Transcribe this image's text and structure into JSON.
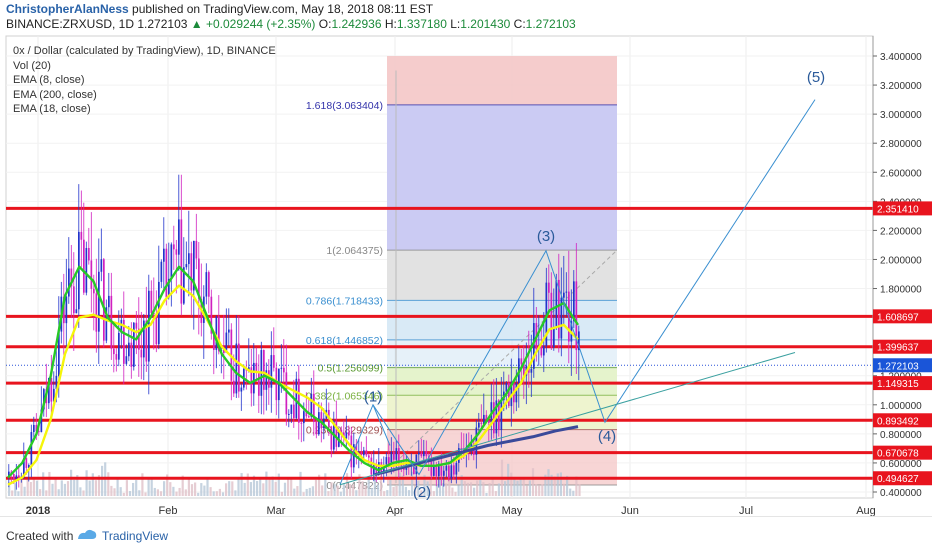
{
  "header": {
    "user": "ChristopherAlanNess",
    "published": "published on TradingView.com, May 18, 2018 08:11 EST",
    "symbol_line": "BINANCE:ZRXUSD, 1D",
    "last": "1.272103",
    "change": "▲ +0.029244 (+2.35%)",
    "o_label": "O:",
    "o": "1.242936",
    "h_label": "H:",
    "h": "1.337180",
    "l_label": "L:",
    "l": "1.201430",
    "c_label": "C:",
    "c": "1.272103"
  },
  "legend": {
    "title": "0x / Dollar (calculated by TradingView), 1D, BINANCE",
    "items": [
      "Vol (20)",
      "EMA (8, close)",
      "EMA (200, close)",
      "EMA (18, close)"
    ]
  },
  "footer": {
    "created": "Created with",
    "brand": "TradingView"
  },
  "colors": {
    "support_line": "#e8141e",
    "ema8": "#27c827",
    "ema18": "#f5f50a",
    "ema200": "#3a4a9a",
    "wave": "#3a8fd0",
    "candle_up": "#2233cc",
    "candle_down": "#d020c0",
    "fib_red": "#f4c7c7",
    "fib_blue": "#c8c8f2",
    "fib_grey": "#e2e2e2",
    "fib_lightblue": "#d5e8f5",
    "fib_green": "#e5f3cc",
    "fib_yellowgreen": "#eef4cf",
    "price_label": "#1a55d8"
  },
  "chart_data": {
    "type": "candlestick",
    "title": "0x / Dollar (calculated by TradingView), 1D, BINANCE",
    "x_ticks": [
      "2018",
      "Feb",
      "Mar",
      "Apr",
      "May",
      "Jun",
      "Jul",
      "Aug"
    ],
    "y_ticks": [
      "3.400000",
      "3.200000",
      "3.000000",
      "2.800000",
      "2.600000",
      "2.400000",
      "2.200000",
      "2.000000",
      "1.800000",
      "1.600000",
      "1.400000",
      "1.200000",
      "1.000000",
      "0.800000",
      "0.600000",
      "0.400000"
    ],
    "ylim": [
      0.4,
      3.4
    ],
    "y_tick_values": [
      3.4,
      3.2,
      3.0,
      2.8,
      2.6,
      2.4,
      2.2,
      2.0,
      1.8,
      1.6,
      1.4,
      1.2,
      1.0,
      0.8,
      0.6,
      0.4
    ],
    "price_levels": [
      {
        "label": "2.351410",
        "value": 2.35141
      },
      {
        "label": "1.608697",
        "value": 1.608697
      },
      {
        "label": "1.399637",
        "value": 1.399637
      },
      {
        "label": "1.272103",
        "value": 1.272103,
        "current": true
      },
      {
        "label": "1.149315",
        "value": 1.149315
      },
      {
        "label": "0.893492",
        "value": 0.893492
      },
      {
        "label": "0.670678",
        "value": 0.670678
      },
      {
        "label": "0.494627",
        "value": 0.494627
      }
    ],
    "fib_levels": [
      {
        "label": "1.618(3.063404)",
        "value": 3.063404
      },
      {
        "label": "1(2.064375)",
        "value": 2.064375
      },
      {
        "label": "0.786(1.718433)",
        "value": 1.718433
      },
      {
        "label": "0.618(1.446852)",
        "value": 1.446852
      },
      {
        "label": "0.5(1.256099)",
        "value": 1.256099
      },
      {
        "label": "0.382(1.065346)",
        "value": 1.065346
      },
      {
        "label": "0.236(0.829329)",
        "value": 0.829329
      },
      {
        "label": "0(0.447822)",
        "value": 0.447822
      }
    ],
    "wave_labels": [
      "(1)",
      "(2)",
      "(3)",
      "(4)",
      "(5)"
    ],
    "series": [
      {
        "name": "EMA (8, close)",
        "values": [
          0.5,
          0.6,
          0.8,
          1.2,
          1.75,
          1.95,
          1.85,
          1.6,
          1.5,
          1.45,
          1.6,
          1.8,
          1.95,
          1.85,
          1.6,
          1.35,
          1.22,
          1.15,
          1.2,
          1.15,
          1.05,
          0.95,
          0.88,
          0.78,
          0.68,
          0.6,
          0.55,
          0.6,
          0.62,
          0.58,
          0.58,
          0.6,
          0.68,
          0.8,
          0.95,
          1.08,
          1.25,
          1.45,
          1.65,
          1.7,
          1.55
        ]
      },
      {
        "name": "EMA (18, close)",
        "values": [
          0.45,
          0.5,
          0.62,
          0.9,
          1.35,
          1.6,
          1.62,
          1.58,
          1.55,
          1.5,
          1.55,
          1.72,
          1.82,
          1.75,
          1.58,
          1.4,
          1.3,
          1.23,
          1.22,
          1.15,
          1.1,
          1.05,
          0.98,
          0.85,
          0.72,
          0.62,
          0.58,
          0.58,
          0.6,
          0.58,
          0.58,
          0.6,
          0.65,
          0.75,
          0.88,
          1.02,
          1.15,
          1.35,
          1.52,
          1.55,
          1.45
        ]
      },
      {
        "name": "EMA (200, close)",
        "values": [
          0.52,
          0.56,
          0.6,
          0.64,
          0.68,
          0.72,
          0.75,
          0.78,
          0.82,
          0.85
        ]
      }
    ]
  }
}
